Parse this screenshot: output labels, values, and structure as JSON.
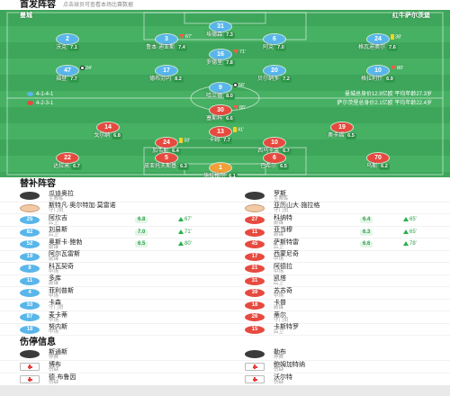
{
  "header": {
    "title": "首发阵容",
    "subtitle": "点击球员可查看本场比赛数据"
  },
  "colors": {
    "home": "#59b6ea",
    "home_gk": "#59b6ea",
    "away": "#e64a3f",
    "away_gk": "#f2a03a",
    "rating_bg": "#2f9b4b"
  },
  "pitch": {
    "home_label": "曼城",
    "away_label": "红牛萨尔茨堡",
    "home_formation": "4-1-4-1",
    "away_formation": "4-2-3-1",
    "home_value": "曼城总身价12.9亿欧 平均年龄27.3岁",
    "away_value": "萨尔茨堡总身价2.1亿欧 平均年龄22.4岁"
  },
  "home_players": [
    {
      "number": "31",
      "name": "埃德森",
      "rating": "7.3",
      "events": []
    },
    {
      "number": "2",
      "name": "沃克",
      "rating": "7.1",
      "events": []
    },
    {
      "number": "3",
      "name": "鲁本·迪亚斯",
      "rating": "7.4",
      "events": [
        {
          "type": "sub-out",
          "minute": "67'"
        }
      ]
    },
    {
      "number": "6",
      "name": "阿克",
      "rating": "7.0",
      "events": []
    },
    {
      "number": "24",
      "name": "格瓦迪奥尔",
      "rating": "7.6",
      "events": [
        {
          "type": "yellow",
          "minute": "38'"
        }
      ]
    },
    {
      "number": "16",
      "name": "罗德里",
      "rating": "7.8",
      "events": [
        {
          "type": "sub-out",
          "minute": "71'"
        }
      ]
    },
    {
      "number": "47",
      "name": "福登",
      "rating": "7.7",
      "events": [
        {
          "type": "goal",
          "minute": "24'"
        }
      ]
    },
    {
      "number": "17",
      "name": "德布劳内",
      "rating": "8.2",
      "events": []
    },
    {
      "number": "20",
      "name": "贝尔纳多",
      "rating": "7.2",
      "events": []
    },
    {
      "number": "10",
      "name": "格拉利什",
      "rating": "6.9",
      "events": [
        {
          "type": "sub-out",
          "minute": "80'"
        }
      ]
    },
    {
      "number": "9",
      "name": "哈兰德",
      "rating": "8.0",
      "events": [
        {
          "type": "goal",
          "minute": "56'"
        }
      ]
    }
  ],
  "away_players": [
    {
      "number": "30",
      "name": "塞斯科",
      "rating": "6.6",
      "events": [
        {
          "type": "sub-out",
          "minute": "65'"
        }
      ]
    },
    {
      "number": "14",
      "name": "戈尔纳",
      "rating": "6.8",
      "events": []
    },
    {
      "number": "13",
      "name": "卡姆",
      "rating": "7.7",
      "events": [
        {
          "type": "yellow",
          "minute": "41'"
        }
      ]
    },
    {
      "number": "19",
      "name": "奥卡福",
      "rating": "6.5",
      "events": []
    },
    {
      "number": "24",
      "name": "加韦斯",
      "rating": "6.4",
      "events": [
        {
          "type": "yellow",
          "minute": "33'"
        }
      ]
    },
    {
      "number": "10",
      "name": "西乌卡莱",
      "rating": "6.7",
      "events": []
    },
    {
      "number": "22",
      "name": "达拉米",
      "rating": "6.7",
      "events": []
    },
    {
      "number": "5",
      "name": "皮亚托夫斯基",
      "rating": "6.3",
      "events": []
    },
    {
      "number": "6",
      "name": "巴希尔",
      "rating": "6.5",
      "events": []
    },
    {
      "number": "70",
      "name": "乌斯",
      "rating": "6.2",
      "events": []
    },
    {
      "number": "1",
      "name": "施拉格尔",
      "rating": "6.1",
      "events": []
    }
  ],
  "subs": {
    "title": "替补阵容",
    "home": [
      {
        "kind": "coach",
        "name": "瓜迪奥拉",
        "role": "主教练"
      },
      {
        "kind": "avatar",
        "name": "斯特凡·奥尔特加·莫雷诺",
        "role": "守门员"
      },
      {
        "kind": "player",
        "number": "25",
        "name": "阿坎吉",
        "role": "后卫",
        "rating": "6.8",
        "event": "67'"
      },
      {
        "kind": "player",
        "number": "82",
        "name": "刘易斯",
        "role": "后卫",
        "rating": "7.0",
        "event": "71'"
      },
      {
        "kind": "player",
        "number": "52",
        "name": "奥斯卡·鲍勃",
        "role": "前锋",
        "rating": "6.5",
        "event": "80'"
      },
      {
        "kind": "player",
        "number": "19",
        "name": "阿尔瓦雷斯",
        "role": "前锋"
      },
      {
        "kind": "player",
        "number": "8",
        "name": "科瓦契奇",
        "role": "中场"
      },
      {
        "kind": "player",
        "number": "11",
        "name": "多库",
        "role": "前锋"
      },
      {
        "kind": "player",
        "number": "4",
        "name": "菲利普斯",
        "role": "中场"
      },
      {
        "kind": "player",
        "number": "33",
        "name": "卡森",
        "role": "守门员"
      },
      {
        "kind": "player",
        "number": "87",
        "name": "麦卡蒂",
        "role": "中场"
      },
      {
        "kind": "player",
        "number": "18",
        "name": "努内斯",
        "role": "中场"
      }
    ],
    "away": [
      {
        "kind": "coach",
        "name": "罗斯",
        "role": "主教练"
      },
      {
        "kind": "avatar",
        "name": "亚历山大·施拉格",
        "role": "守门员"
      },
      {
        "kind": "player",
        "number": "27",
        "name": "科纳特",
        "role": "前锋",
        "rating": "6.4",
        "event": "65'"
      },
      {
        "kind": "player",
        "number": "11",
        "name": "亚当穆",
        "role": "前锋",
        "rating": "6.3",
        "event": "65'"
      },
      {
        "kind": "player",
        "number": "45",
        "name": "萨斯特雷",
        "role": "后卫",
        "rating": "6.6",
        "event": "78'"
      },
      {
        "kind": "player",
        "number": "17",
        "name": "西蒙尼奇",
        "role": "中场"
      },
      {
        "kind": "player",
        "number": "21",
        "name": "阿德拉",
        "role": "中场"
      },
      {
        "kind": "player",
        "number": "31",
        "name": "凯塔",
        "role": "后卫"
      },
      {
        "kind": "player",
        "number": "39",
        "name": "苏苏奇",
        "role": "中场"
      },
      {
        "kind": "player",
        "number": "18",
        "name": "卡普",
        "role": "前锋"
      },
      {
        "kind": "player",
        "number": "26",
        "name": "蒂尔",
        "role": "守门员"
      },
      {
        "kind": "player",
        "number": "15",
        "name": "卡斯特罗",
        "role": "后卫"
      }
    ]
  },
  "injuries": {
    "title": "伤停信息",
    "home": [
      {
        "kind": "suspend",
        "name": "斯通斯",
        "role": "停赛"
      },
      {
        "kind": "injury",
        "name": "博布",
        "role": "伤缺"
      },
      {
        "kind": "injury",
        "name": "德·布鲁因",
        "role": "伤缺"
      }
    ],
    "away": [
      {
        "kind": "suspend",
        "name": "勒布",
        "role": "停赛"
      },
      {
        "kind": "injury",
        "name": "鲍姆加特纳",
        "role": "伤缺"
      },
      {
        "kind": "injury",
        "name": "沃尔特",
        "role": "伤缺"
      }
    ]
  }
}
